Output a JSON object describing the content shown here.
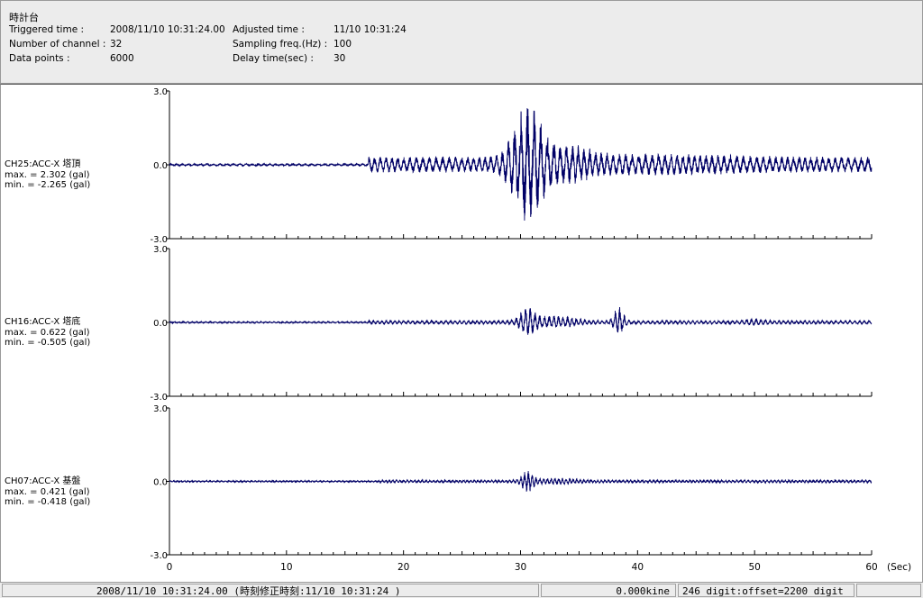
{
  "header": {
    "title": "時計台",
    "fields": [
      {
        "label": "Triggered time :",
        "value": "2008/11/10 10:31:24.00"
      },
      {
        "label": "Number of channel :",
        "value": "32"
      },
      {
        "label": "Data points :",
        "value": "6000"
      },
      {
        "label": "Adjusted time :",
        "value": "11/10 10:31:24"
      },
      {
        "label": "Sampling freq.(Hz) :",
        "value": "100"
      },
      {
        "label": "Delay time(sec) :",
        "value": "30"
      }
    ]
  },
  "chart_data": {
    "type": "line",
    "x_range": [
      0,
      60
    ],
    "x_ticks": [
      "0",
      "10",
      "20",
      "30",
      "40",
      "50",
      "60"
    ],
    "x_unit": "(Sec)",
    "panels": [
      {
        "name": "CH25:ACC-X 塔頂",
        "max_label": "max. = 2.302 (gal)",
        "min_label": "min. = -2.265 (gal)",
        "max": 2.302,
        "min": -2.265,
        "y_range": [
          -3.0,
          3.0
        ],
        "y_ticks": [
          "3.0",
          "0.0",
          "-3.0"
        ],
        "color": "#000066"
      },
      {
        "name": "CH16:ACC-X 塔底",
        "max_label": "max. = 0.622 (gal)",
        "min_label": "min. = -0.505 (gal)",
        "max": 0.622,
        "min": -0.505,
        "y_range": [
          -3.0,
          3.0
        ],
        "y_ticks": [
          "3.0",
          "0.0",
          "-3.0"
        ],
        "color": "#000066"
      },
      {
        "name": "CH07:ACC-X 基盤",
        "max_label": "max. = 0.421 (gal)",
        "min_label": "min. = -0.418 (gal)",
        "max": 0.421,
        "min": -0.418,
        "y_range": [
          -3.0,
          3.0
        ],
        "y_ticks": [
          "3.0",
          "0.0",
          "-3.0"
        ],
        "color": "#000066"
      }
    ]
  },
  "status": {
    "time": "2008/11/10 10:31:24.00  (時刻修正時刻:11/10 10:31:24  )",
    "velocity": "0.000kine",
    "digit": "246 digit:offset=2200 digit"
  }
}
